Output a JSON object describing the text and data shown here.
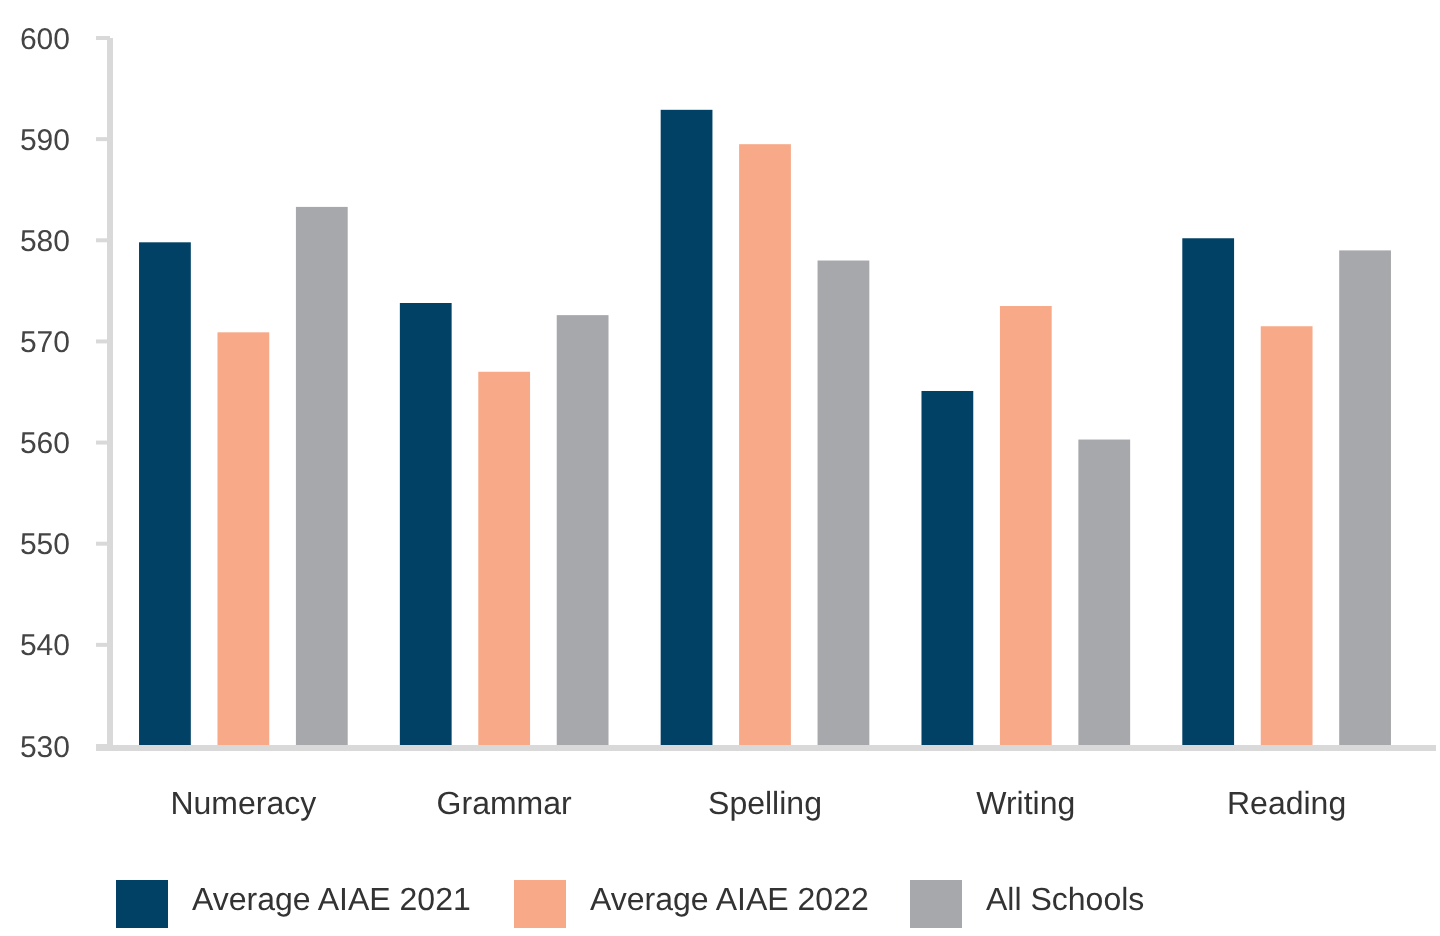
{
  "chart_data": {
    "type": "bar",
    "categories": [
      "Numeracy",
      "Grammar",
      "Spelling",
      "Writing",
      "Reading"
    ],
    "series": [
      {
        "name": "Average AIAE 2021",
        "color": "#004165",
        "values": [
          579.8,
          573.8,
          592.9,
          565.1,
          580.2
        ]
      },
      {
        "name": "Average AIAE 2022",
        "color": "#f7a988",
        "values": [
          570.9,
          567.0,
          589.5,
          573.5,
          571.5
        ]
      },
      {
        "name": "All Schools",
        "color": "#a7a8ab",
        "values": [
          583.3,
          572.6,
          578.0,
          560.3,
          579.0
        ]
      }
    ],
    "ylim": [
      530,
      600
    ],
    "yticks": [
      530,
      540,
      550,
      560,
      570,
      580,
      590,
      600
    ],
    "grid": false,
    "legend": "bottom"
  }
}
